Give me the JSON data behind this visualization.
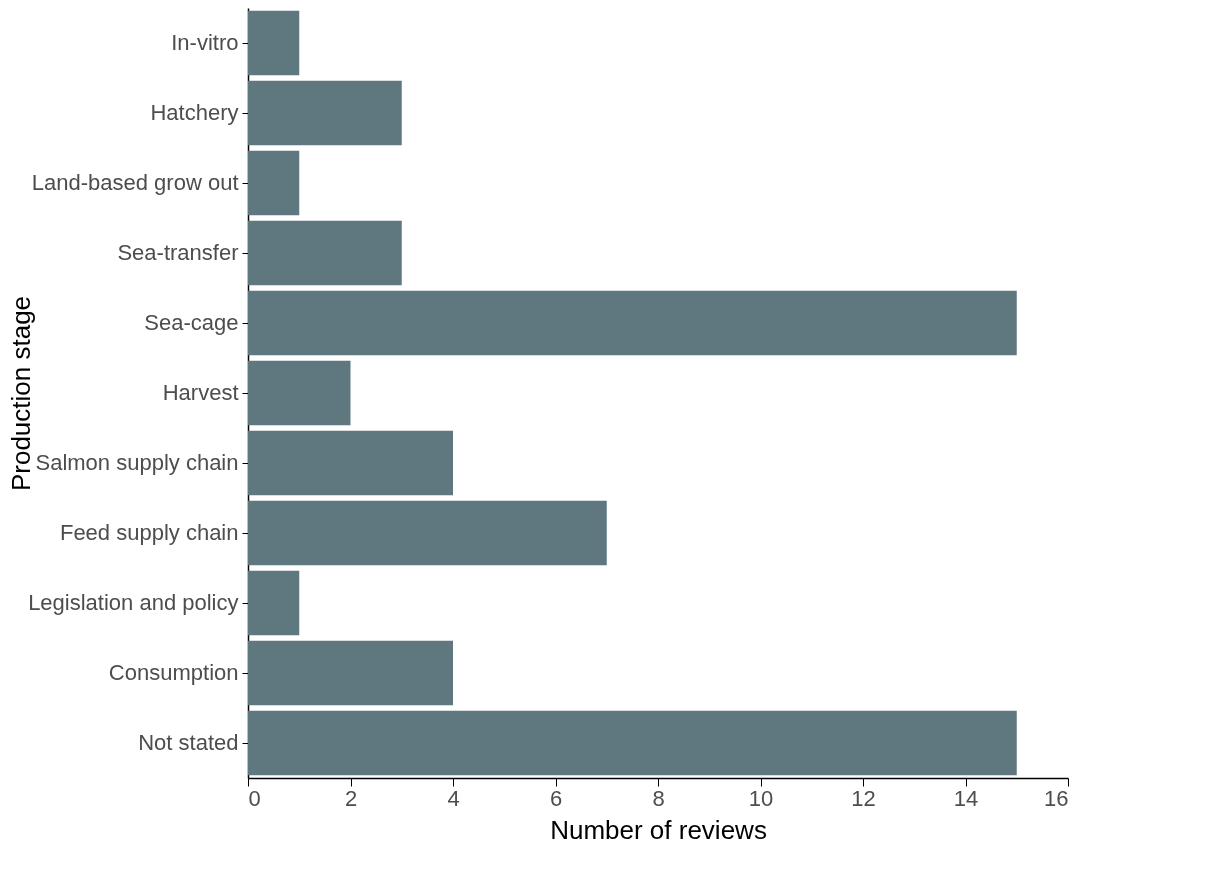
{
  "chart_data": {
    "type": "bar",
    "orientation": "horizontal",
    "xlabel": "Number of reviews",
    "ylabel": "Production stage",
    "categories": [
      "In-vitro",
      "Hatchery",
      "Land-based grow out",
      "Sea-transfer",
      "Sea-cage",
      "Harvest",
      "Salmon supply chain",
      "Feed supply chain",
      "Legislation and policy",
      "Consumption",
      "Not stated"
    ],
    "values": [
      1,
      3,
      1,
      3,
      15,
      2,
      4,
      7,
      1,
      4,
      15
    ],
    "color": "#5f7880",
    "xlim": [
      0,
      16
    ],
    "xticks": [
      0,
      2,
      4,
      6,
      8,
      10,
      12,
      14,
      16
    ],
    "grid": false
  }
}
